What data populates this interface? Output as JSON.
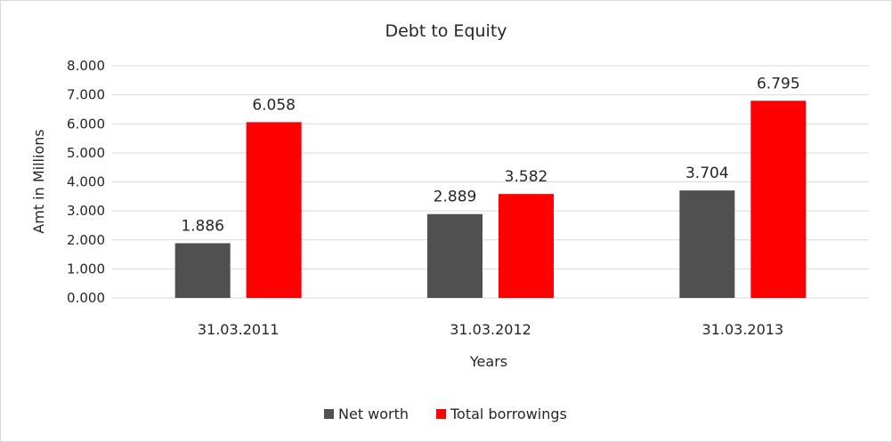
{
  "chart_data": {
    "type": "bar",
    "title": "Debt to Equity",
    "xlabel": "Years",
    "ylabel": "Amt in Millions",
    "categories": [
      "31.03.2011",
      "31.03.2012",
      "31.03.2013"
    ],
    "series": [
      {
        "name": "Net worth",
        "values": [
          1.886,
          2.889,
          3.704
        ],
        "color": "#505050"
      },
      {
        "name": "Total borrowings",
        "values": [
          6.058,
          3.582,
          6.795
        ],
        "color": "#ff0000"
      }
    ],
    "ylim": [
      0,
      8
    ],
    "yticks": [
      "0.000",
      "1.000",
      "2.000",
      "3.000",
      "4.000",
      "5.000",
      "6.000",
      "7.000",
      "8.000"
    ],
    "data_labels": [
      [
        "1.886",
        "2.889",
        "3.704"
      ],
      [
        "6.058",
        "3.582",
        "6.795"
      ]
    ],
    "grid": true,
    "gridline_color": "#d9d9d9",
    "legend_position": "bottom"
  }
}
